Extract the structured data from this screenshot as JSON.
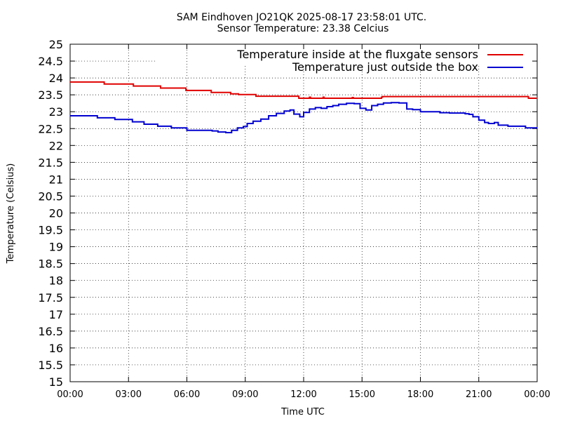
{
  "chart_data": {
    "type": "line",
    "title": "SAM Eindhoven JO21QK 2025-08-17 23:58:01 UTC.",
    "subtitle": "Sensor Temperature: 23.38 Celcius",
    "xlabel": "Time UTC",
    "ylabel": "Temperature (Celsius)",
    "xlim": [
      0,
      24
    ],
    "ylim": [
      15,
      25
    ],
    "grid": true,
    "legend_position": "top-right",
    "x_tick_values": [
      0,
      3,
      6,
      9,
      12,
      15,
      18,
      21,
      24
    ],
    "x_tick_labels": [
      "00:00",
      "03:00",
      "06:00",
      "09:00",
      "12:00",
      "15:00",
      "18:00",
      "21:00",
      "00:00"
    ],
    "y_tick_values": [
      15,
      15.5,
      16,
      16.5,
      17,
      17.5,
      18,
      18.5,
      19,
      19.5,
      20,
      20.5,
      21,
      21.5,
      22,
      22.5,
      23,
      23.5,
      24,
      24.5,
      25
    ],
    "y_tick_labels": [
      "15",
      "15.5",
      "16",
      "16.5",
      "17",
      "17.5",
      "18",
      "18.5",
      "19",
      "19.5",
      "20",
      "20.5",
      "21",
      "21.5",
      "22",
      "22.5",
      "23",
      "23.5",
      "24",
      "24.5",
      "25"
    ],
    "series": [
      {
        "name": "Temperature inside at the fluxgate sensors",
        "color": "#e00000",
        "x": [
          0,
          1.7,
          1.75,
          3.2,
          3.25,
          4.6,
          4.65,
          5.9,
          5.95,
          7.2,
          7.25,
          8.2,
          8.25,
          8.6,
          8.65,
          9.5,
          9.55,
          11.7,
          11.75,
          12.3,
          12.35,
          13.0,
          13.05,
          14.5,
          14.55,
          16.0,
          16.05,
          16.5,
          16.55,
          23.5,
          23.55,
          23.97
        ],
        "y": [
          23.88,
          23.88,
          23.82,
          23.82,
          23.76,
          23.76,
          23.7,
          23.7,
          23.63,
          23.63,
          23.57,
          23.57,
          23.53,
          23.53,
          23.51,
          23.51,
          23.46,
          23.46,
          23.4,
          23.43,
          23.4,
          23.43,
          23.4,
          23.42,
          23.4,
          23.43,
          23.45,
          23.45,
          23.45,
          23.45,
          23.4,
          23.4
        ]
      },
      {
        "name": "Temperature just outside the box",
        "color": "#0000d0",
        "x": [
          0,
          0.5,
          1.4,
          2.3,
          3.2,
          3.8,
          4.5,
          5.2,
          6.0,
          6.7,
          7.3,
          7.6,
          8.0,
          8.3,
          8.6,
          8.9,
          9.1,
          9.4,
          9.8,
          10.2,
          10.6,
          11.0,
          11.3,
          11.5,
          11.8,
          12.0,
          12.3,
          12.6,
          12.9,
          13.2,
          13.5,
          13.8,
          14.2,
          14.6,
          14.9,
          15.2,
          15.5,
          15.8,
          16.1,
          16.5,
          16.9,
          17.3,
          17.6,
          18.0,
          18.5,
          19.0,
          19.5,
          20.0,
          20.3,
          20.5,
          20.7,
          21.0,
          21.3,
          21.5,
          21.8,
          22.0,
          22.5,
          23.0,
          23.4,
          23.97
        ],
        "y": [
          22.88,
          22.88,
          22.82,
          22.77,
          22.7,
          22.63,
          22.57,
          22.52,
          22.45,
          22.45,
          22.43,
          22.4,
          22.38,
          22.45,
          22.52,
          22.56,
          22.65,
          22.72,
          22.78,
          22.88,
          22.95,
          23.02,
          23.05,
          22.93,
          22.85,
          22.98,
          23.08,
          23.12,
          23.1,
          23.15,
          23.18,
          23.22,
          23.25,
          23.24,
          23.1,
          23.05,
          23.18,
          23.22,
          23.26,
          23.27,
          23.26,
          23.08,
          23.06,
          23.0,
          23.0,
          22.97,
          22.96,
          22.96,
          22.94,
          22.92,
          22.85,
          22.75,
          22.68,
          22.65,
          22.68,
          22.6,
          22.57,
          22.57,
          22.52,
          22.5
        ]
      }
    ]
  }
}
